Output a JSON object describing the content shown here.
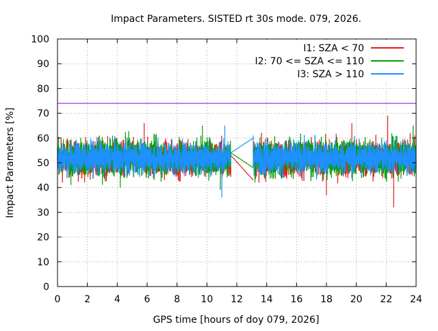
{
  "chart_data": {
    "type": "line",
    "title": "Impact Parameters. SISTED rt 30s mode. 079, 2026.",
    "xlabel": "GPS time [hours of doy 079, 2026]",
    "ylabel": "Impact Parameters [%]",
    "xlim": [
      0,
      24
    ],
    "ylim": [
      0,
      100
    ],
    "xticks": [
      0,
      2,
      4,
      6,
      8,
      10,
      12,
      14,
      16,
      18,
      20,
      22,
      24
    ],
    "yticks": [
      0,
      10,
      20,
      30,
      40,
      50,
      60,
      70,
      80,
      90,
      100
    ],
    "grid": true,
    "legend_position": "top-right",
    "reference_line": {
      "y": 74,
      "color": "#9400d3"
    },
    "gap": [
      11.6,
      13.1
    ],
    "series": [
      {
        "name": "I1: SZA < 70",
        "color": "#e41a1c",
        "center": 51.5,
        "spread": 5,
        "samples": 2880,
        "spikes": [
          [
            5.8,
            66
          ],
          [
            10.2,
            60
          ],
          [
            18.0,
            37
          ],
          [
            19.7,
            66
          ],
          [
            22.1,
            69
          ],
          [
            22.5,
            32
          ],
          [
            23.6,
            62
          ]
        ],
        "gap_line": [
          [
            11.6,
            53
          ],
          [
            13.1,
            43
          ]
        ]
      },
      {
        "name": "I2: 70 <= SZA <= 110",
        "color": "#00a000",
        "center": 52,
        "spread": 5,
        "samples": 2880,
        "spikes": [
          [
            0.9,
            41
          ],
          [
            4.2,
            40
          ],
          [
            9.7,
            65
          ],
          [
            10.9,
            39
          ],
          [
            17.8,
            43
          ],
          [
            21.7,
            60
          ],
          [
            23.8,
            65
          ]
        ],
        "gap_line": [
          [
            11.6,
            54
          ],
          [
            13.1,
            48
          ]
        ]
      },
      {
        "name": "I3: SZA > 110",
        "color": "#1e90ff",
        "center": 52,
        "spread": 4.5,
        "samples": 2880,
        "spikes": [
          [
            11.2,
            65
          ],
          [
            11.0,
            36
          ],
          [
            13.1,
            61
          ],
          [
            20.2,
            59
          ]
        ],
        "gap_line": [
          [
            11.6,
            54
          ],
          [
            13.1,
            60
          ]
        ]
      }
    ]
  }
}
